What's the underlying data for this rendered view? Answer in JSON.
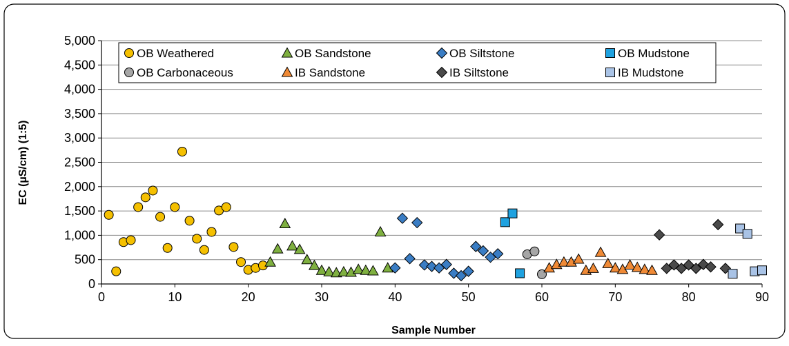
{
  "chart_data": {
    "type": "scatter",
    "title": "",
    "xlabel": "Sample Number",
    "ylabel": "EC (µS/cm) (1:5)",
    "xlim": [
      0,
      90
    ],
    "ylim": [
      0,
      5000
    ],
    "x_ticks": [
      0,
      10,
      20,
      30,
      40,
      50,
      60,
      70,
      80,
      90
    ],
    "y_ticks": [
      0,
      500,
      1000,
      1500,
      2000,
      2500,
      3000,
      3500,
      4000,
      4500,
      5000
    ],
    "x_tick_labels": [
      "0",
      "10",
      "20",
      "30",
      "40",
      "50",
      "60",
      "70",
      "80",
      "90"
    ],
    "y_tick_labels": [
      "0",
      "500",
      "1,000",
      "1,500",
      "2,000",
      "2,500",
      "3,000",
      "3,500",
      "4,000",
      "4,500",
      "5,000"
    ],
    "grid": "horizontal",
    "legend_position": "top",
    "series": [
      {
        "name": "OB Weathered",
        "marker": "circle",
        "color": "#F5C000",
        "points": [
          [
            1,
            1420
          ],
          [
            2,
            260
          ],
          [
            3,
            860
          ],
          [
            4,
            900
          ],
          [
            5,
            1580
          ],
          [
            6,
            1780
          ],
          [
            7,
            1920
          ],
          [
            8,
            1380
          ],
          [
            9,
            740
          ],
          [
            10,
            1580
          ],
          [
            11,
            2720
          ],
          [
            12,
            1300
          ],
          [
            13,
            930
          ],
          [
            14,
            700
          ],
          [
            15,
            1070
          ],
          [
            16,
            1510
          ],
          [
            17,
            1580
          ],
          [
            18,
            760
          ],
          [
            19,
            450
          ],
          [
            20,
            290
          ],
          [
            21,
            330
          ],
          [
            22,
            380
          ]
        ]
      },
      {
        "name": "OB Sandstone",
        "marker": "triangle",
        "color": "#7FB040",
        "points": [
          [
            23,
            450
          ],
          [
            24,
            720
          ],
          [
            25,
            1240
          ],
          [
            26,
            780
          ],
          [
            27,
            710
          ],
          [
            28,
            500
          ],
          [
            29,
            380
          ],
          [
            30,
            280
          ],
          [
            31,
            250
          ],
          [
            32,
            230
          ],
          [
            33,
            250
          ],
          [
            34,
            240
          ],
          [
            35,
            300
          ],
          [
            36,
            280
          ],
          [
            37,
            270
          ],
          [
            38,
            1070
          ],
          [
            39,
            330
          ]
        ]
      },
      {
        "name": "OB Siltstone",
        "marker": "diamond",
        "color": "#3A7DC4",
        "points": [
          [
            40,
            330
          ],
          [
            41,
            1350
          ],
          [
            42,
            520
          ],
          [
            43,
            1260
          ],
          [
            44,
            390
          ],
          [
            45,
            360
          ],
          [
            46,
            330
          ],
          [
            47,
            400
          ],
          [
            48,
            220
          ],
          [
            49,
            170
          ],
          [
            50,
            260
          ],
          [
            51,
            770
          ],
          [
            52,
            680
          ],
          [
            53,
            550
          ],
          [
            54,
            620
          ]
        ]
      },
      {
        "name": "OB Mudstone",
        "marker": "square",
        "color": "#1FA2E0",
        "points": [
          [
            55,
            1270
          ],
          [
            56,
            1450
          ],
          [
            57,
            220
          ]
        ]
      },
      {
        "name": "OB Carbonaceous",
        "marker": "circle",
        "color": "#A6A6A6",
        "points": [
          [
            58,
            610
          ],
          [
            59,
            670
          ],
          [
            60,
            200
          ]
        ]
      },
      {
        "name": "IB Sandstone",
        "marker": "triangle",
        "color": "#F08A36",
        "points": [
          [
            61,
            330
          ],
          [
            62,
            400
          ],
          [
            63,
            450
          ],
          [
            64,
            450
          ],
          [
            65,
            510
          ],
          [
            66,
            280
          ],
          [
            67,
            320
          ],
          [
            68,
            650
          ],
          [
            69,
            420
          ],
          [
            70,
            330
          ],
          [
            71,
            300
          ],
          [
            72,
            390
          ],
          [
            73,
            340
          ],
          [
            74,
            300
          ],
          [
            75,
            280
          ]
        ]
      },
      {
        "name": "IB Siltstone",
        "marker": "diamond",
        "color": "#4A4A4A",
        "points": [
          [
            76,
            1010
          ],
          [
            77,
            320
          ],
          [
            78,
            390
          ],
          [
            79,
            320
          ],
          [
            80,
            390
          ],
          [
            81,
            320
          ],
          [
            82,
            400
          ],
          [
            83,
            350
          ],
          [
            84,
            1220
          ],
          [
            85,
            320
          ]
        ]
      },
      {
        "name": "IB Mudstone",
        "marker": "square",
        "color": "#A9C3E6",
        "points": [
          [
            86,
            210
          ],
          [
            87,
            1140
          ],
          [
            88,
            1030
          ],
          [
            89,
            260
          ],
          [
            90,
            280
          ]
        ]
      }
    ]
  }
}
